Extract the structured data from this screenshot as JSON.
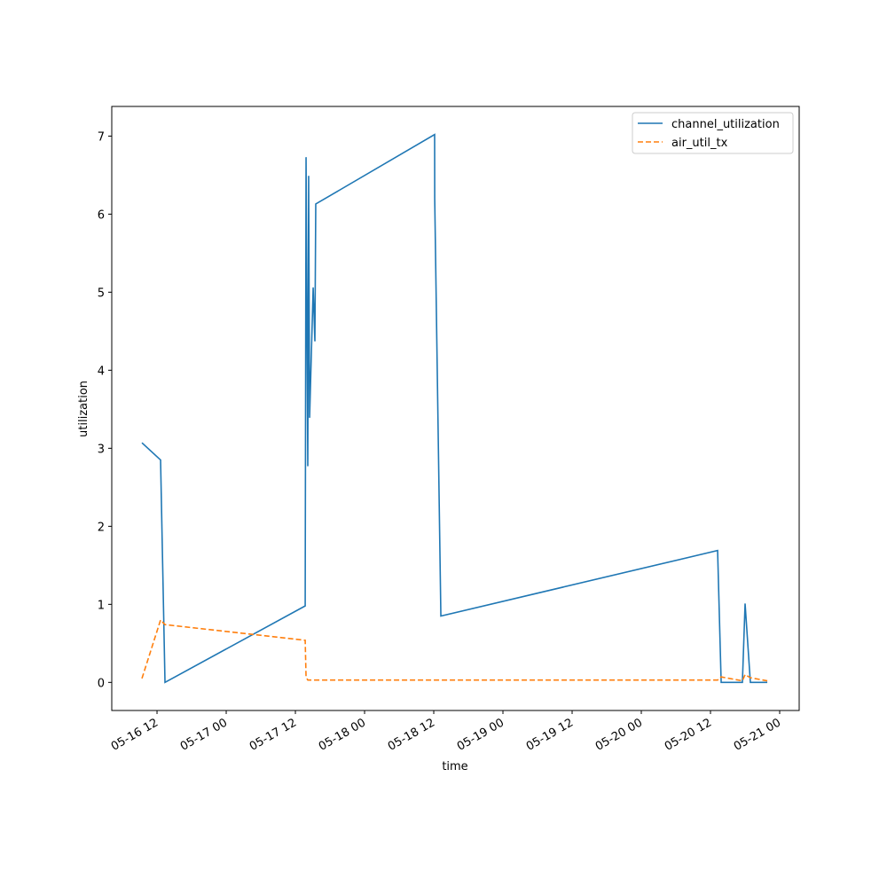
{
  "chart_data": {
    "type": "line",
    "x_label": "time",
    "y_label": "utilization",
    "x": [
      "05-16 09:23",
      "05-16 12:37",
      "05-16 13:23",
      "05-17 13:42",
      "05-17 13:51",
      "05-17 14:09",
      "05-17 14:18",
      "05-17 14:28",
      "05-17 15:05",
      "05-17 15:23",
      "05-17 15:32",
      "05-18 12:09",
      "05-18 12:10",
      "05-18 13:14",
      "05-20 13:14",
      "05-20 13:51",
      "05-20 17:32",
      "05-20 18:00",
      "05-20 18:55",
      "05-20 21:51"
    ],
    "series": [
      {
        "name": "channel_utilization",
        "color": "#1f77b4",
        "dash": false,
        "values": [
          3.07,
          2.85,
          0.0,
          0.98,
          6.73,
          2.77,
          6.49,
          3.39,
          5.06,
          4.37,
          6.13,
          7.02,
          6.2,
          0.85,
          1.69,
          0.0,
          0.0,
          1.01,
          0.0,
          0.0
        ]
      },
      {
        "name": "air_util_tx",
        "color": "#ff7f0e",
        "dash": true,
        "values": [
          0.05,
          0.8,
          0.74,
          0.54,
          0.07,
          0.03,
          0.03,
          0.03,
          0.03,
          0.03,
          0.03,
          0.03,
          0.03,
          0.03,
          0.03,
          0.07,
          0.02,
          0.1,
          0.06,
          0.02
        ]
      }
    ],
    "xlim": [
      "05-16 04:09",
      "05-21 03:23"
    ],
    "xticks": [
      "05-16 12",
      "05-17 00",
      "05-17 12",
      "05-18 00",
      "05-18 12",
      "05-19 00",
      "05-19 12",
      "05-20 00",
      "05-20 12",
      "05-21 00"
    ],
    "ylim": [
      -0.36,
      7.38
    ],
    "yticks": [
      0,
      1,
      2,
      3,
      4,
      5,
      6,
      7
    ],
    "legend": "upper right"
  }
}
